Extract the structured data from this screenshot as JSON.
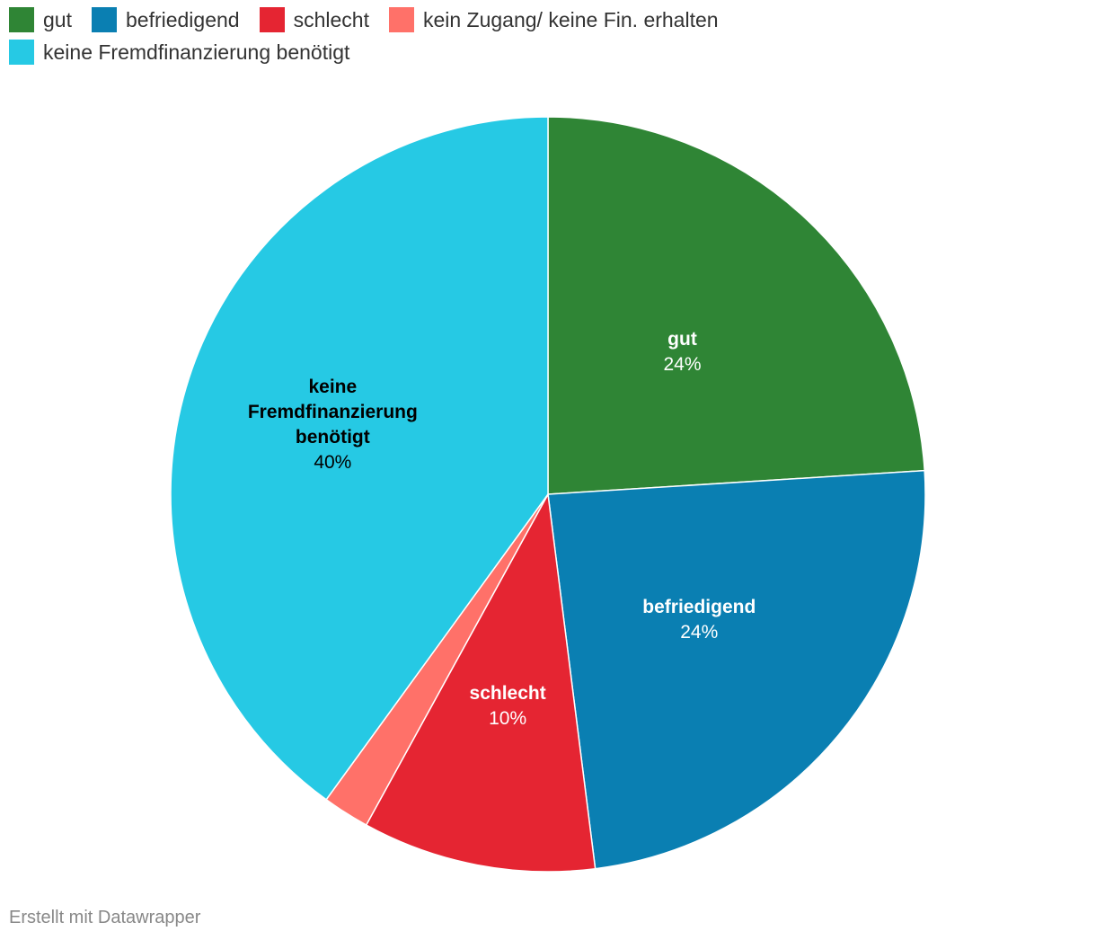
{
  "chart_data": {
    "type": "pie",
    "categories": [
      "gut",
      "befriedigend",
      "schlecht",
      "kein Zugang/ keine Fin. erhalten",
      "keine Fremdfinanzierung benötigt"
    ],
    "values": [
      24,
      24,
      10,
      2,
      40
    ],
    "unit": "%",
    "colors": [
      "#2f8535",
      "#0a7fb2",
      "#e52532",
      "#ff7169",
      "#26c9e4"
    ],
    "slice_labels": [
      {
        "name_lines": [
          "gut"
        ],
        "value": "24%",
        "text_color": "#ffffff"
      },
      {
        "name_lines": [
          "befriedigend"
        ],
        "value": "24%",
        "text_color": "#ffffff"
      },
      {
        "name_lines": [
          "schlecht"
        ],
        "value": "10%",
        "text_color": "#ffffff"
      },
      null,
      {
        "name_lines": [
          "keine",
          "Fremdfinanzierung",
          "benötigt"
        ],
        "value": "40%",
        "text_color": "#000000"
      }
    ],
    "legend": {
      "placement": "top-left",
      "items": [
        {
          "label": "gut",
          "color": "#2f8535"
        },
        {
          "label": "befriedigend",
          "color": "#0a7fb2"
        },
        {
          "label": "schlecht",
          "color": "#e52532"
        },
        {
          "label": "kein Zugang/ keine Fin. erhalten",
          "color": "#ff7169"
        },
        {
          "label": "keine Fremdfinanzierung benötigt",
          "color": "#26c9e4"
        }
      ]
    }
  },
  "credit": "Erstellt mit Datawrapper"
}
